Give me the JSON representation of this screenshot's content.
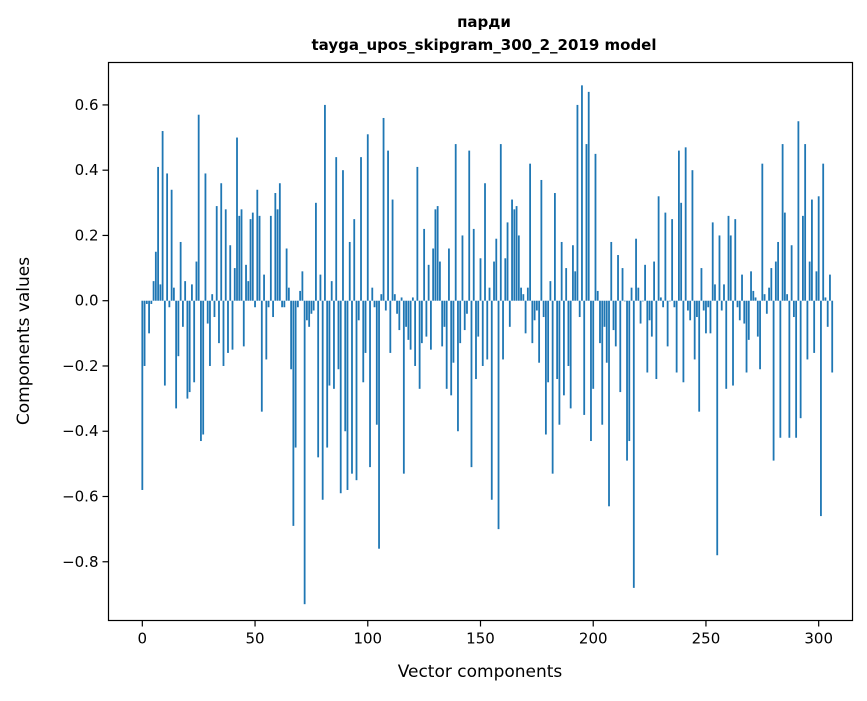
{
  "chart_data": {
    "type": "bar",
    "title_line1": "парди",
    "title_line2": "tayga_upos_skipgram_300_2_2019 model",
    "xlabel": "Vector components",
    "ylabel": "Components values",
    "xlim": [
      -15,
      315
    ],
    "ylim": [
      -0.98,
      0.73
    ],
    "xticks": [
      0,
      50,
      100,
      150,
      200,
      250,
      300
    ],
    "xtick_labels": [
      "0",
      "50",
      "100",
      "150",
      "200",
      "250",
      "300"
    ],
    "yticks": [
      -0.8,
      -0.6,
      -0.4,
      -0.2,
      0.0,
      0.2,
      0.4,
      0.6
    ],
    "ytick_labels": [
      "−0.8",
      "−0.6",
      "−0.4",
      "−0.2",
      "0.0",
      "0.2",
      "0.4",
      "0.6"
    ],
    "bar_color": "#1f77b4",
    "values": [
      -0.58,
      -0.2,
      -0.01,
      -0.1,
      -0.01,
      0.06,
      0.15,
      0.41,
      0.05,
      0.52,
      -0.26,
      0.39,
      -0.02,
      0.34,
      0.04,
      -0.33,
      -0.17,
      0.18,
      -0.08,
      0.06,
      -0.3,
      -0.28,
      0.05,
      -0.25,
      0.12,
      0.57,
      -0.43,
      -0.41,
      0.39,
      -0.07,
      -0.2,
      0.02,
      -0.05,
      0.29,
      -0.13,
      0.36,
      -0.2,
      0.28,
      -0.16,
      0.17,
      -0.15,
      0.1,
      0.5,
      0.26,
      0.28,
      -0.14,
      0.11,
      0.06,
      0.25,
      0.27,
      -0.02,
      0.34,
      0.26,
      -0.34,
      0.08,
      -0.18,
      -0.02,
      0.26,
      -0.05,
      0.33,
      0.28,
      0.36,
      -0.02,
      -0.02,
      0.16,
      0.04,
      -0.21,
      -0.69,
      -0.45,
      -0.02,
      0.03,
      0.09,
      -0.93,
      -0.06,
      -0.08,
      -0.04,
      -0.03,
      0.3,
      -0.48,
      0.08,
      -0.61,
      0.6,
      -0.45,
      -0.26,
      0.06,
      -0.27,
      0.44,
      -0.21,
      -0.59,
      0.4,
      -0.4,
      -0.58,
      0.18,
      -0.53,
      0.25,
      -0.55,
      -0.06,
      0.44,
      -0.25,
      -0.16,
      0.51,
      -0.51,
      0.04,
      -0.02,
      -0.38,
      -0.76,
      0.02,
      0.56,
      -0.03,
      0.46,
      -0.16,
      0.31,
      0.02,
      -0.04,
      -0.09,
      0.01,
      -0.53,
      -0.08,
      -0.12,
      -0.15,
      0.01,
      -0.2,
      0.41,
      -0.27,
      -0.13,
      0.22,
      -0.11,
      0.11,
      -0.15,
      0.16,
      0.28,
      0.29,
      0.12,
      -0.14,
      -0.08,
      -0.27,
      0.16,
      -0.29,
      -0.19,
      0.48,
      -0.4,
      -0.13,
      0.2,
      -0.09,
      -0.04,
      0.46,
      -0.51,
      0.22,
      -0.24,
      -0.11,
      0.13,
      -0.2,
      0.36,
      -0.18,
      0.04,
      -0.61,
      0.12,
      0.19,
      -0.7,
      0.48,
      -0.18,
      0.13,
      0.24,
      -0.08,
      0.31,
      0.28,
      0.29,
      0.2,
      0.04,
      0.02,
      -0.1,
      0.04,
      0.42,
      -0.13,
      -0.06,
      -0.03,
      -0.19,
      0.37,
      -0.05,
      -0.41,
      -0.25,
      0.06,
      -0.53,
      0.33,
      -0.24,
      -0.38,
      0.18,
      -0.29,
      0.1,
      -0.2,
      -0.33,
      0.17,
      0.09,
      0.6,
      -0.05,
      0.66,
      -0.35,
      0.48,
      0.64,
      -0.43,
      -0.27,
      0.45,
      0.03,
      -0.13,
      -0.38,
      -0.08,
      -0.19,
      -0.63,
      0.18,
      -0.09,
      -0.14,
      0.14,
      -0.28,
      0.1,
      0.0,
      -0.49,
      -0.43,
      0.04,
      -0.88,
      0.19,
      0.04,
      -0.07,
      0.0,
      0.11,
      -0.22,
      -0.06,
      -0.11,
      0.12,
      -0.24,
      0.32,
      0.01,
      -0.02,
      0.27,
      -0.14,
      0.0,
      0.25,
      -0.02,
      -0.22,
      0.46,
      0.3,
      -0.25,
      0.47,
      -0.03,
      -0.06,
      0.4,
      -0.18,
      -0.05,
      -0.34,
      0.1,
      -0.03,
      -0.1,
      -0.02,
      -0.1,
      0.24,
      0.05,
      -0.78,
      0.2,
      -0.03,
      0.05,
      -0.27,
      0.26,
      0.2,
      -0.26,
      0.25,
      -0.02,
      -0.06,
      0.08,
      -0.07,
      -0.22,
      -0.12,
      0.09,
      0.03,
      0.01,
      -0.11,
      -0.21,
      0.42,
      0.02,
      -0.04,
      0.04,
      0.1,
      -0.49,
      0.12,
      0.18,
      -0.42,
      0.48,
      0.27,
      0.02,
      -0.42,
      0.17,
      -0.05,
      -0.42,
      0.55,
      -0.36,
      0.26,
      0.48,
      -0.18,
      0.12,
      0.31,
      -0.16,
      0.09,
      0.32,
      -0.66,
      0.42,
      0.01,
      -0.08,
      0.08,
      -0.22
    ]
  }
}
